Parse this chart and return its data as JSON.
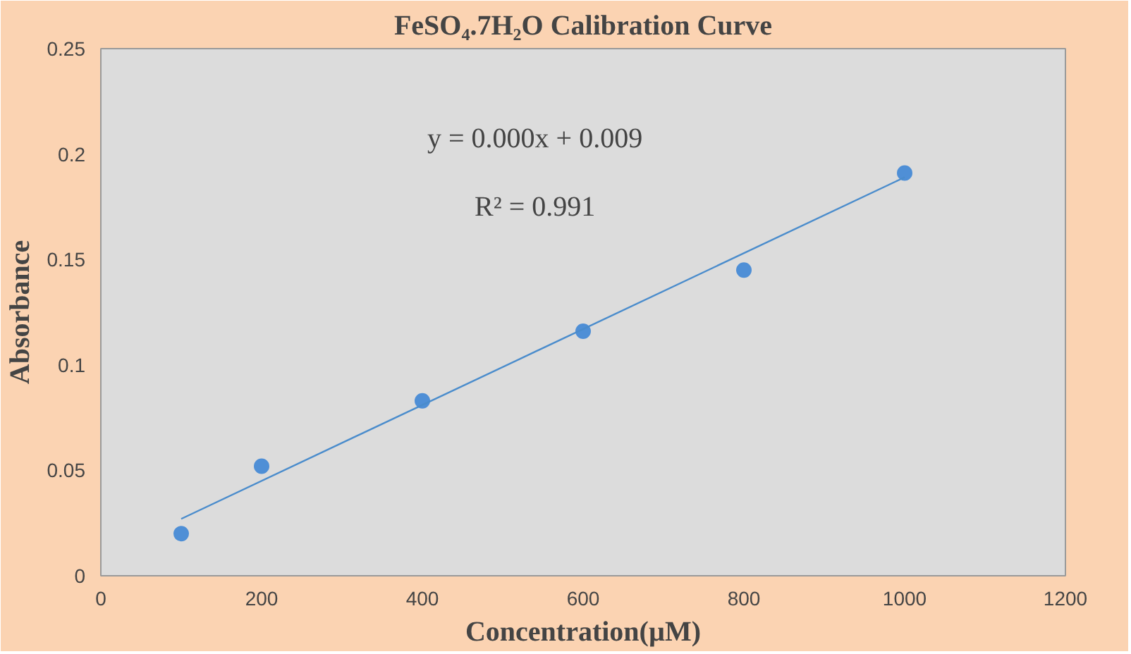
{
  "chart_data": {
    "type": "scatter",
    "title": "FeSO₄.7H₂O Calibration Curve",
    "xlabel": "Concentration(µM)",
    "ylabel": "Absorbance",
    "x": [
      100,
      200,
      400,
      600,
      800,
      1000
    ],
    "series": [
      {
        "color": "#4f8fd6",
        "values": [
          0.02,
          0.052,
          0.083,
          0.116,
          0.145,
          0.191
        ],
        "marker": "circle"
      },
      {
        "type": "line",
        "color": "#4a8ccc",
        "x": [
          100,
          1000
        ],
        "values": [
          0.027,
          0.189
        ],
        "marker": "none"
      }
    ],
    "annotations": [
      "y = 0.000x + 0.009",
      "R² = 0.991"
    ],
    "xlim": [
      0,
      1200
    ],
    "xticks": [
      0,
      200,
      400,
      600,
      800,
      1000,
      1200
    ],
    "ylim": [
      0,
      0.25
    ],
    "yticks": [
      0,
      0.05,
      0.1,
      0.15,
      0.2,
      0.25
    ],
    "grid": false
  }
}
